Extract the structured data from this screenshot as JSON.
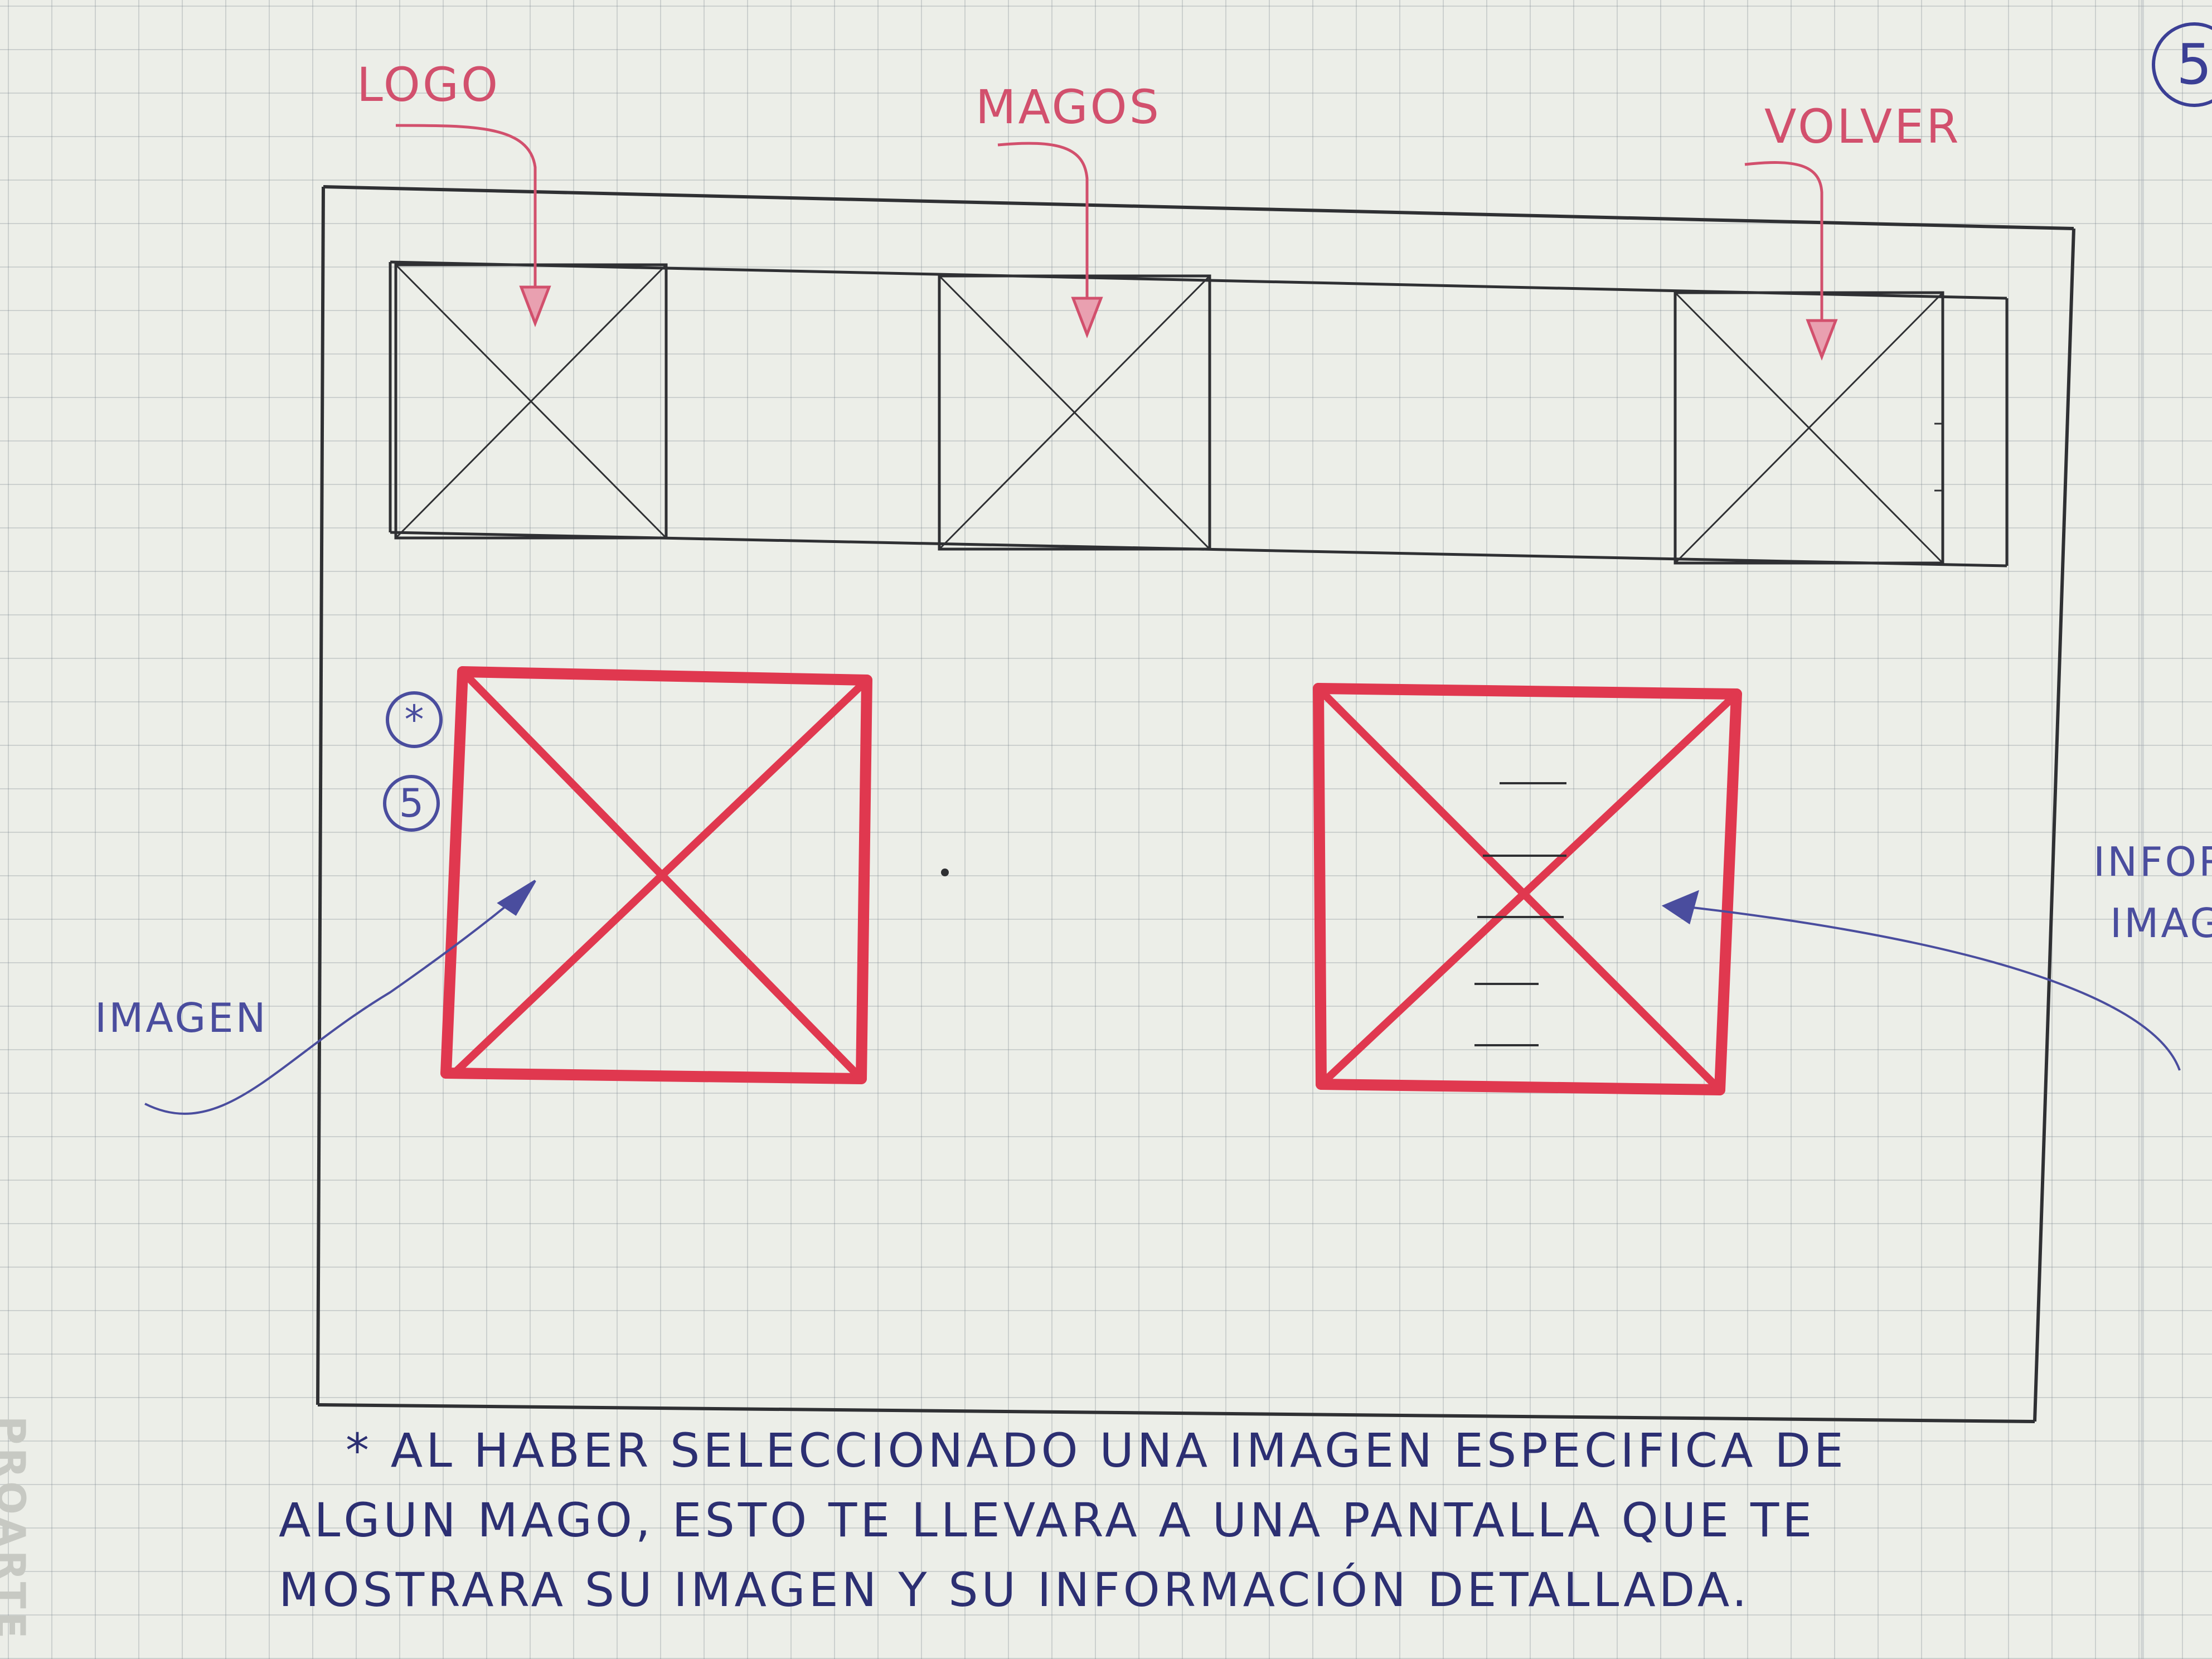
{
  "labels": {
    "logo": "LOGO",
    "magos": "MAGOS",
    "volver": "VOLVER",
    "imagen": "IMAGEN",
    "informacion_line1": "INFORM",
    "informacion_line2": "IMAG"
  },
  "markers": {
    "asterisk": "*",
    "number": "5"
  },
  "page_number": "5",
  "brand": "PROARTE",
  "note": {
    "line1": "* AL HABER SELECCIONADO UNA IMAGEN ESPECIFICA DE",
    "line2": "ALGUN MAGO, ESTO TE LLEVARA A UNA PANTALLA QUE TE",
    "line3": "MOSTRARA SU IMAGEN Y SU INFORMACIÓN DETALLADA."
  },
  "colors": {
    "pen_black": "#2f3033",
    "marker_red": "#e0384f",
    "pen_pink": "#d2506d",
    "pen_blue": "#4a4d9e"
  }
}
